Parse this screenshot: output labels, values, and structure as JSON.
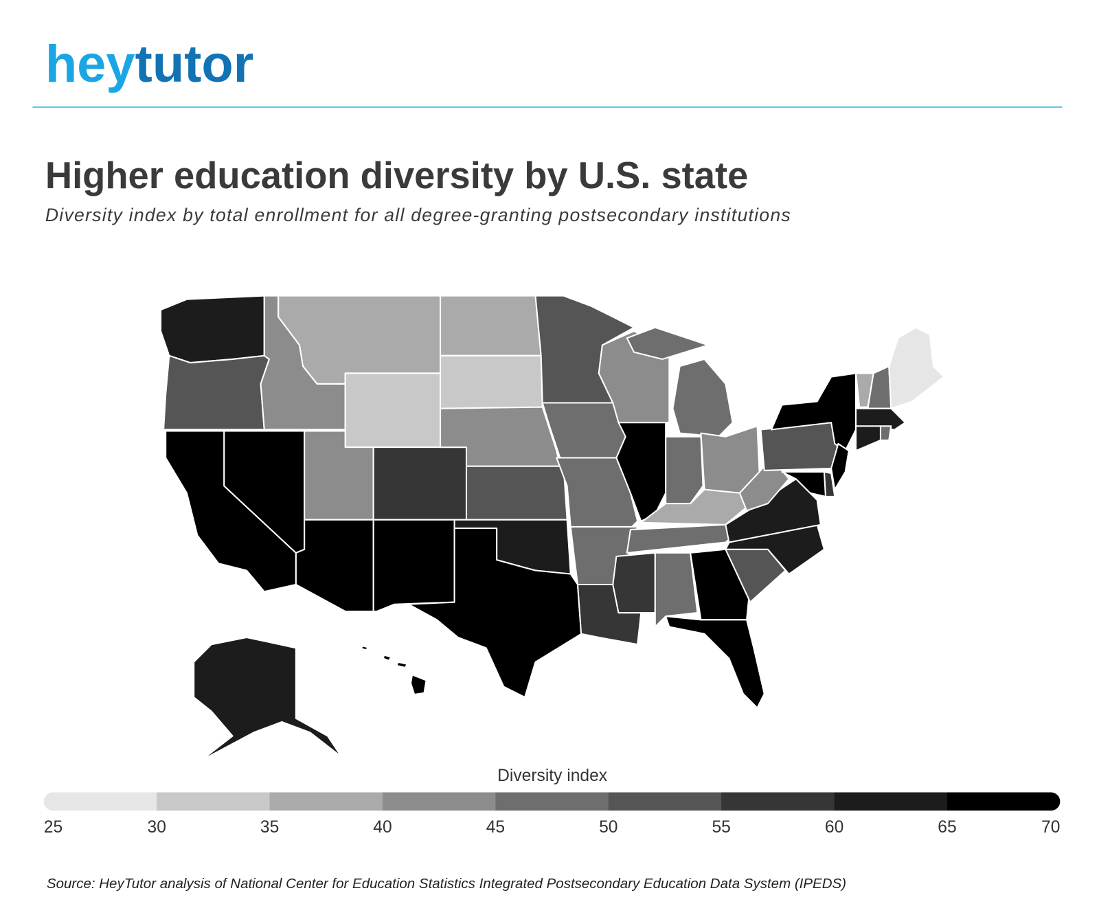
{
  "logo": [
    "hey",
    "tutor"
  ],
  "chart_data": {
    "type": "choropleth",
    "title": "Higher education diversity by U.S. state",
    "subtitle": "Diversity index by total enrollment for all degree-granting postsecondary institutions",
    "values": [
      62,
      52,
      67,
      67,
      42,
      37,
      32,
      42,
      67,
      57,
      67,
      37,
      32,
      42,
      52,
      62,
      67,
      52,
      47,
      47,
      47,
      57,
      42,
      67,
      47,
      47,
      42,
      37,
      47,
      57,
      47,
      67,
      67,
      52,
      62,
      62,
      42,
      52,
      67,
      37,
      47,
      27,
      62,
      47,
      62,
      67,
      57,
      67,
      62,
      67
    ],
    "legend": {
      "title": "Diversity index",
      "ticks": [
        25,
        30,
        35,
        40,
        45,
        50,
        55,
        60,
        65,
        70
      ],
      "colors": [
        "#e6e6e6",
        "#c8c8c8",
        "#aaaaaa",
        "#8c8c8c",
        "#6e6e6e",
        "#555555",
        "#363636",
        "#1c1c1c",
        "#000000"
      ]
    },
    "source": "Source: HeyTutor analysis of National Center for Education Statistics Integrated Postsecondary Education Data System (IPEDS)"
  }
}
